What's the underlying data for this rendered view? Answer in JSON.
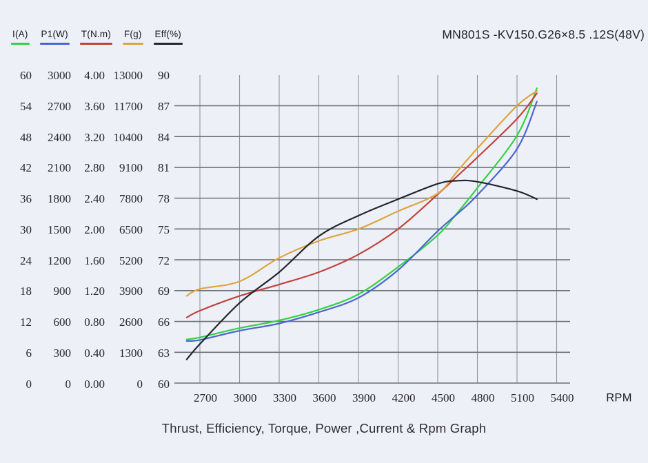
{
  "header": {
    "title": "MN801S -KV150.G26×8.5 .12S(48V)"
  },
  "footer": {
    "caption": "Thrust, Efficiency, Torque, Power ,Current & Rpm Graph"
  },
  "colors": {
    "background": "#edf1f7",
    "grid_horizontal": "#6b7077",
    "grid_vertical": "#8f959d",
    "text": "#1d1f24"
  },
  "chart_data": {
    "type": "line",
    "title": "MN801S -KV150.G26×8.5 .12S(48V)",
    "caption": "Thrust, Efficiency, Torque, Power ,Current & Rpm Graph",
    "xlabel": "RPM",
    "grid": true,
    "legend_position": "top-left",
    "x_ticks": [
      2700,
      3000,
      3300,
      3600,
      3900,
      4200,
      4500,
      4800,
      5100,
      5400
    ],
    "x_range": [
      2505,
      5505
    ],
    "y_axes": [
      {
        "name": "I(A)",
        "color": "#32d243",
        "min": 0,
        "max": 60,
        "ticks_top_to_bottom": [
          "60",
          "54",
          "48",
          "42",
          "36",
          "30",
          "24",
          "18",
          "12",
          "6",
          "0"
        ]
      },
      {
        "name": "P1(W)",
        "color": "#4a66d2",
        "min": 0,
        "max": 3000,
        "ticks_top_to_bottom": [
          "3000",
          "2700",
          "2400",
          "2100",
          "1800",
          "1500",
          "1200",
          "900",
          "600",
          "300",
          "0"
        ]
      },
      {
        "name": "T(N.m)",
        "color": "#c2423c",
        "min": 0,
        "max": 4,
        "ticks_top_to_bottom": [
          "4.00",
          "3.60",
          "3.20",
          "2.80",
          "2.40",
          "2.00",
          "1.60",
          "1.20",
          "0.80",
          "0.40",
          "0.00"
        ]
      },
      {
        "name": "F(g)",
        "color": "#dfa33e",
        "min": 0,
        "max": 13000,
        "ticks_top_to_bottom": [
          "13000",
          "11700",
          "10400",
          "9100",
          "7800",
          "6500",
          "5200",
          "3900",
          "2600",
          "1300",
          "0"
        ]
      },
      {
        "name": "Eff(%)",
        "color": "#23262e",
        "min": 60,
        "max": 90,
        "ticks_top_to_bottom": [
          "90",
          "87",
          "84",
          "81",
          "78",
          "75",
          "72",
          "69",
          "66",
          "63",
          "60"
        ]
      }
    ],
    "x": [
      2600,
      2700,
      3000,
      3300,
      3600,
      3900,
      4200,
      4500,
      4650,
      4800,
      5100,
      5250
    ],
    "series": [
      {
        "name": "I(A)",
        "axis": 0,
        "color": "#32d243",
        "values": [
          8.5,
          8.9,
          10.7,
          12.2,
          14.3,
          17.3,
          22.6,
          28.8,
          33.2,
          38.0,
          48.2,
          57.4
        ]
      },
      {
        "name": "P1(W)",
        "axis": 1,
        "color": "#4a66d2",
        "values": [
          410,
          420,
          510,
          580,
          690,
          830,
          1100,
          1480,
          1650,
          1830,
          2280,
          2740
        ]
      },
      {
        "name": "T(N.m)",
        "axis": 2,
        "color": "#c2423c",
        "values": [
          0.85,
          0.94,
          1.13,
          1.28,
          1.44,
          1.67,
          2.0,
          2.45,
          2.69,
          2.93,
          3.43,
          3.76
        ]
      },
      {
        "name": "F(g)",
        "axis": 3,
        "color": "#dfa33e",
        "values": [
          3680,
          3970,
          4290,
          5280,
          6000,
          6500,
          7250,
          8000,
          8950,
          9900,
          11700,
          12320
        ]
      },
      {
        "name": "Eff(%)",
        "axis": 4,
        "color": "#23262e",
        "values": [
          62.3,
          63.8,
          67.8,
          70.8,
          74.3,
          76.3,
          77.9,
          79.4,
          79.7,
          79.6,
          78.7,
          77.9
        ]
      }
    ]
  }
}
